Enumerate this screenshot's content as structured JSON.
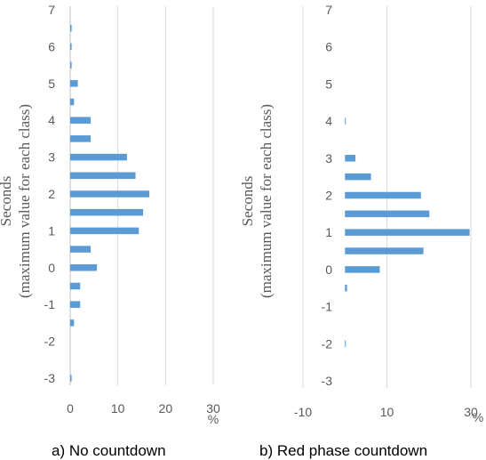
{
  "colors": {
    "bar": "#5b9bd5",
    "grid": "#d9d9d9",
    "text": "#595959"
  },
  "chart_data": [
    {
      "type": "bar",
      "orientation": "horizontal",
      "caption": "a)  No countdown",
      "ylabel_line1": "Seconds",
      "ylabel_line2": "(maximum value for each class)",
      "unit": "%",
      "xlim": [
        0,
        30
      ],
      "xticks": [
        "0",
        "10",
        "20",
        "30"
      ],
      "ylim": [
        -3,
        7
      ],
      "yticks": [
        "-3",
        "-2",
        "-1",
        "0",
        "1",
        "2",
        "3",
        "4",
        "5",
        "6",
        "7"
      ],
      "grid": true,
      "categories": [
        -3,
        -2.5,
        -2,
        -1.5,
        -1,
        -0.5,
        0,
        0.5,
        1,
        1.5,
        2,
        2.5,
        3,
        3.5,
        4,
        4.5,
        5,
        5.5,
        6,
        6.5
      ],
      "values": [
        0.3,
        0,
        0,
        0.8,
        2.1,
        2.1,
        5.6,
        4.3,
        14.4,
        15.3,
        16.6,
        13.7,
        11.9,
        4.3,
        4.3,
        0.8,
        1.6,
        0.3,
        0.3,
        0.3
      ]
    },
    {
      "type": "bar",
      "orientation": "horizontal",
      "caption": "b)  Red phase countdown",
      "ylabel_line1": "Seconds",
      "ylabel_line2": "(maximum value for each class)",
      "unit": "%",
      "xlim": [
        -10,
        30
      ],
      "xticks": [
        "-10",
        "10",
        "30"
      ],
      "ylim": [
        -3,
        7
      ],
      "yticks": [
        "-3",
        "-2",
        "-1",
        "0",
        "1",
        "2",
        "3",
        "4",
        "5",
        "6",
        "7"
      ],
      "grid": true,
      "categories": [
        -3,
        -2.5,
        -2,
        -1.5,
        -1,
        -0.5,
        0,
        0.5,
        1,
        1.5,
        2,
        2.5,
        3,
        3.5,
        4
      ],
      "values": [
        0,
        0,
        0.2,
        0,
        0,
        0.5,
        8.3,
        18.7,
        29.7,
        20.1,
        18.1,
        6.2,
        2.5,
        0,
        0.2
      ]
    }
  ]
}
